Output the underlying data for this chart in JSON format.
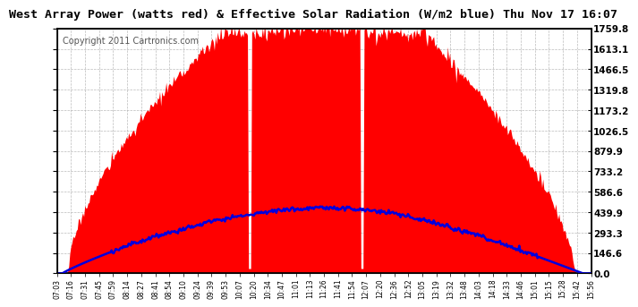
{
  "title": "West Array Power (watts red) & Effective Solar Radiation (W/m2 blue) Thu Nov 17 16:07",
  "copyright": "Copyright 2011 Cartronics.com",
  "title_fontsize": 9.5,
  "copyright_fontsize": 7,
  "yticks": [
    0.0,
    146.6,
    293.3,
    439.9,
    586.6,
    733.2,
    879.9,
    1026.5,
    1173.2,
    1319.8,
    1466.5,
    1613.1,
    1759.8
  ],
  "ymax": 1759.8,
  "ymin": 0.0,
  "background_color": "#ffffff",
  "plot_bg_color": "#ffffff",
  "grid_color": "#aaaaaa",
  "red_color": "#ff0000",
  "blue_color": "#0000dd",
  "x_labels": [
    "07:03",
    "07:16",
    "07:31",
    "07:45",
    "07:59",
    "08:14",
    "08:27",
    "08:41",
    "08:54",
    "09:10",
    "09:24",
    "09:39",
    "09:53",
    "10:07",
    "10:20",
    "10:34",
    "10:47",
    "11:01",
    "11:13",
    "11:26",
    "11:41",
    "11:54",
    "12:07",
    "12:20",
    "12:36",
    "12:52",
    "13:05",
    "13:19",
    "13:32",
    "13:48",
    "14:03",
    "14:18",
    "14:33",
    "14:46",
    "15:01",
    "15:15",
    "15:28",
    "15:42",
    "15:56"
  ],
  "n_labels": 39
}
